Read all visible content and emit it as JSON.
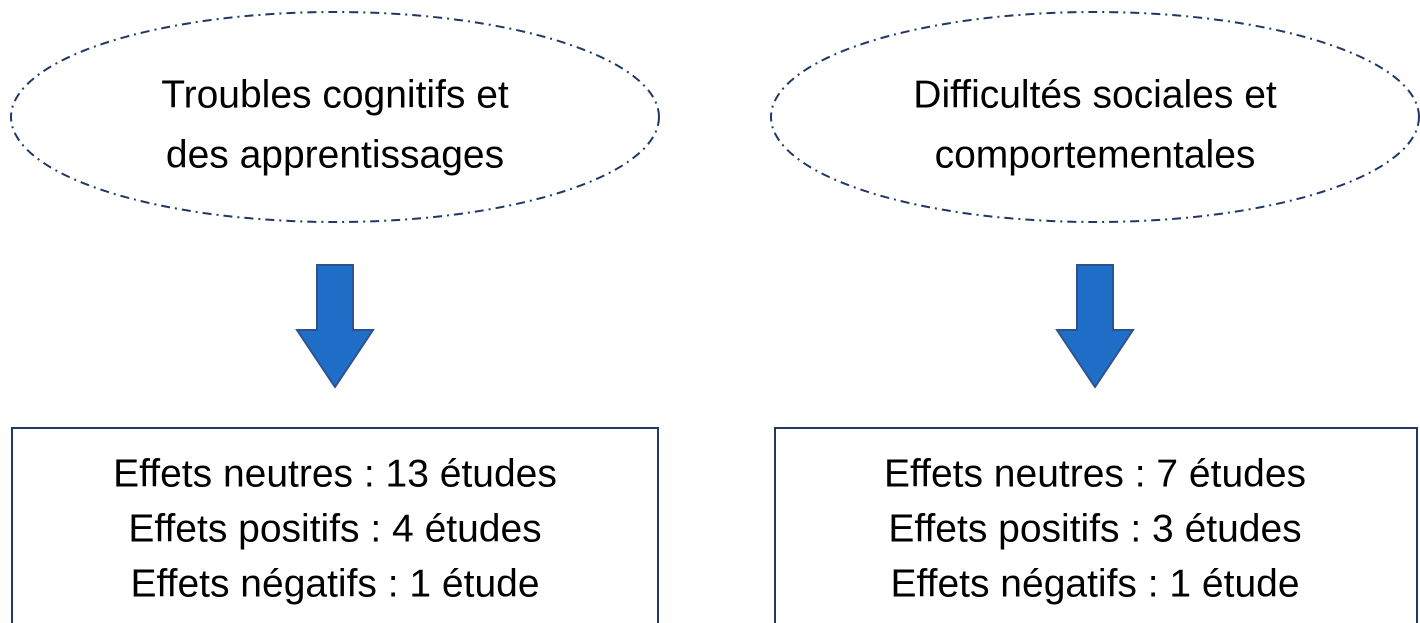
{
  "columns": [
    {
      "heading": [
        "Troubles cognitifs et",
        "des apprentissages"
      ],
      "results": [
        "Effets neutres : 13 études",
        "Effets positifs : 4 études",
        "Effets négatifs : 1 étude"
      ]
    },
    {
      "heading": [
        "Difficultés sociales et",
        "comportementales"
      ],
      "results": [
        "Effets neutres : 7 études",
        "Effets positifs : 3 études",
        "Effets négatifs : 1 étude"
      ]
    }
  ]
}
